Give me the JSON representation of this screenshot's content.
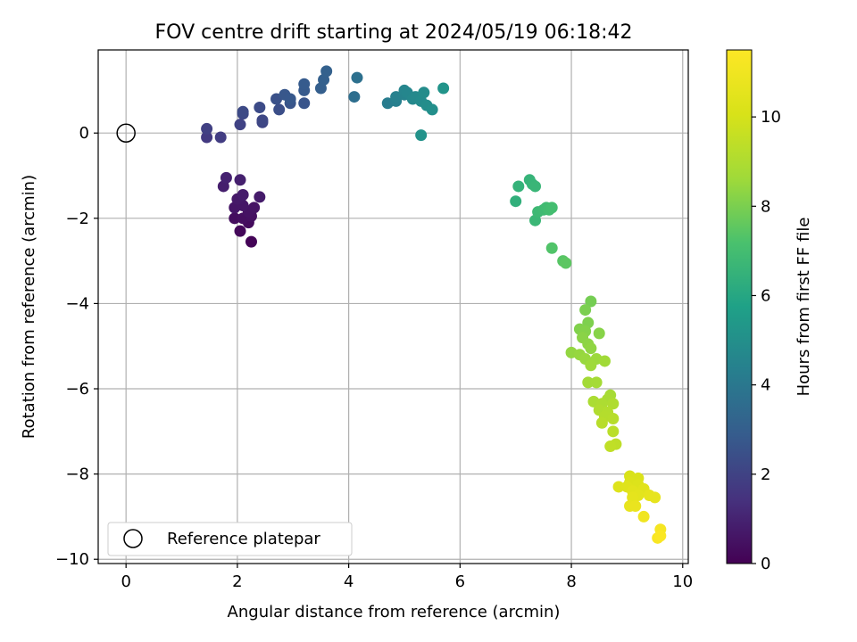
{
  "chart_data": {
    "type": "scatter",
    "title": "FOV centre drift starting at 2024/05/19 06:18:42",
    "xlabel": "Angular distance from reference (arcmin)",
    "ylabel": "Rotation from reference (arcmin)",
    "xlim": [
      -0.5,
      10.1
    ],
    "ylim": [
      -10.1,
      1.95
    ],
    "xticks": [
      "0",
      "2",
      "4",
      "6",
      "8",
      "10"
    ],
    "yticks": [
      "−10",
      "−8",
      "−6",
      "−4",
      "−2",
      "0"
    ],
    "grid": true,
    "legend": {
      "placement": "lower-left",
      "entries": [
        "Reference platepar"
      ]
    },
    "reference_point": {
      "x": 0,
      "y": 0
    },
    "colorbar": {
      "label": "Hours from first FF file",
      "colormap": "viridis",
      "range": [
        0,
        11.5
      ],
      "ticks": [
        "0",
        "2",
        "4",
        "6",
        "8",
        "10"
      ]
    },
    "points": [
      {
        "x": 2.25,
        "y": -2.55,
        "hours": 0.1
      },
      {
        "x": 2.05,
        "y": -2.3,
        "hours": 0.2
      },
      {
        "x": 2.2,
        "y": -2.1,
        "hours": 0.3
      },
      {
        "x": 1.95,
        "y": -2.0,
        "hours": 0.35
      },
      {
        "x": 2.1,
        "y": -2.0,
        "hours": 0.4
      },
      {
        "x": 2.25,
        "y": -1.95,
        "hours": 0.45
      },
      {
        "x": 2.2,
        "y": -1.85,
        "hours": 0.5
      },
      {
        "x": 2.3,
        "y": -1.75,
        "hours": 0.55
      },
      {
        "x": 1.95,
        "y": -1.75,
        "hours": 0.6
      },
      {
        "x": 2.1,
        "y": -1.7,
        "hours": 0.62
      },
      {
        "x": 2.05,
        "y": -1.55,
        "hours": 0.65
      },
      {
        "x": 2.0,
        "y": -1.55,
        "hours": 0.7
      },
      {
        "x": 2.4,
        "y": -1.5,
        "hours": 0.75
      },
      {
        "x": 2.1,
        "y": -1.45,
        "hours": 0.8
      },
      {
        "x": 1.75,
        "y": -1.25,
        "hours": 0.85
      },
      {
        "x": 2.05,
        "y": -1.1,
        "hours": 0.9
      },
      {
        "x": 1.8,
        "y": -1.05,
        "hours": 0.95
      },
      {
        "x": 1.45,
        "y": -0.1,
        "hours": 1.7
      },
      {
        "x": 1.7,
        "y": -0.1,
        "hours": 1.8
      },
      {
        "x": 1.45,
        "y": 0.1,
        "hours": 1.9
      },
      {
        "x": 2.05,
        "y": 0.2,
        "hours": 2.0
      },
      {
        "x": 2.45,
        "y": 0.25,
        "hours": 2.1
      },
      {
        "x": 2.45,
        "y": 0.3,
        "hours": 2.15
      },
      {
        "x": 2.1,
        "y": 0.45,
        "hours": 2.2
      },
      {
        "x": 2.1,
        "y": 0.5,
        "hours": 2.25
      },
      {
        "x": 2.4,
        "y": 0.6,
        "hours": 2.3
      },
      {
        "x": 2.75,
        "y": 0.55,
        "hours": 2.4
      },
      {
        "x": 2.7,
        "y": 0.8,
        "hours": 2.5
      },
      {
        "x": 2.95,
        "y": 0.7,
        "hours": 2.6
      },
      {
        "x": 3.2,
        "y": 0.7,
        "hours": 2.65
      },
      {
        "x": 2.85,
        "y": 0.9,
        "hours": 2.7
      },
      {
        "x": 2.95,
        "y": 0.8,
        "hours": 2.75
      },
      {
        "x": 3.2,
        "y": 1.0,
        "hours": 2.8
      },
      {
        "x": 3.2,
        "y": 1.15,
        "hours": 2.85
      },
      {
        "x": 3.5,
        "y": 1.05,
        "hours": 3.0
      },
      {
        "x": 3.55,
        "y": 1.25,
        "hours": 3.05
      },
      {
        "x": 3.6,
        "y": 1.45,
        "hours": 3.1
      },
      {
        "x": 4.1,
        "y": 0.85,
        "hours": 3.6
      },
      {
        "x": 4.15,
        "y": 1.3,
        "hours": 3.7
      },
      {
        "x": 4.7,
        "y": 0.7,
        "hours": 4.2
      },
      {
        "x": 4.85,
        "y": 0.75,
        "hours": 4.3
      },
      {
        "x": 4.85,
        "y": 0.85,
        "hours": 4.4
      },
      {
        "x": 5.0,
        "y": 0.9,
        "hours": 4.5
      },
      {
        "x": 5.0,
        "y": 1.0,
        "hours": 4.55
      },
      {
        "x": 5.05,
        "y": 0.95,
        "hours": 4.6
      },
      {
        "x": 5.15,
        "y": 0.8,
        "hours": 4.7
      },
      {
        "x": 5.2,
        "y": 0.85,
        "hours": 4.75
      },
      {
        "x": 5.3,
        "y": 0.75,
        "hours": 4.8
      },
      {
        "x": 5.35,
        "y": 0.95,
        "hours": 4.85
      },
      {
        "x": 5.4,
        "y": 0.65,
        "hours": 4.9
      },
      {
        "x": 5.5,
        "y": 0.55,
        "hours": 5.0
      },
      {
        "x": 5.3,
        "y": -0.05,
        "hours": 5.1
      },
      {
        "x": 5.7,
        "y": 1.05,
        "hours": 5.2
      },
      {
        "x": 7.0,
        "y": -1.6,
        "hours": 6.4
      },
      {
        "x": 7.05,
        "y": -1.25,
        "hours": 6.5
      },
      {
        "x": 7.25,
        "y": -1.1,
        "hours": 6.55
      },
      {
        "x": 7.3,
        "y": -1.2,
        "hours": 6.6
      },
      {
        "x": 7.35,
        "y": -1.25,
        "hours": 6.65
      },
      {
        "x": 7.35,
        "y": -2.05,
        "hours": 6.7
      },
      {
        "x": 7.4,
        "y": -1.85,
        "hours": 6.8
      },
      {
        "x": 7.5,
        "y": -1.8,
        "hours": 6.85
      },
      {
        "x": 7.55,
        "y": -1.75,
        "hours": 6.9
      },
      {
        "x": 7.6,
        "y": -1.8,
        "hours": 6.95
      },
      {
        "x": 7.65,
        "y": -1.75,
        "hours": 7.0
      },
      {
        "x": 7.65,
        "y": -2.7,
        "hours": 7.3
      },
      {
        "x": 7.85,
        "y": -3.0,
        "hours": 7.4
      },
      {
        "x": 7.9,
        "y": -3.05,
        "hours": 7.5
      },
      {
        "x": 8.35,
        "y": -3.95,
        "hours": 7.9
      },
      {
        "x": 8.25,
        "y": -4.15,
        "hours": 8.0
      },
      {
        "x": 8.3,
        "y": -4.45,
        "hours": 8.05
      },
      {
        "x": 8.15,
        "y": -4.6,
        "hours": 8.1
      },
      {
        "x": 8.25,
        "y": -4.65,
        "hours": 8.15
      },
      {
        "x": 8.5,
        "y": -4.7,
        "hours": 8.2
      },
      {
        "x": 8.2,
        "y": -4.8,
        "hours": 8.25
      },
      {
        "x": 8.3,
        "y": -4.95,
        "hours": 8.3
      },
      {
        "x": 8.35,
        "y": -5.05,
        "hours": 8.35
      },
      {
        "x": 8.0,
        "y": -5.15,
        "hours": 8.4
      },
      {
        "x": 8.15,
        "y": -5.2,
        "hours": 8.45
      },
      {
        "x": 8.25,
        "y": -5.3,
        "hours": 8.5
      },
      {
        "x": 8.45,
        "y": -5.3,
        "hours": 8.55
      },
      {
        "x": 8.35,
        "y": -5.45,
        "hours": 8.6
      },
      {
        "x": 8.6,
        "y": -5.35,
        "hours": 8.65
      },
      {
        "x": 8.3,
        "y": -5.85,
        "hours": 8.7
      },
      {
        "x": 8.45,
        "y": -5.85,
        "hours": 8.75
      },
      {
        "x": 8.7,
        "y": -6.15,
        "hours": 8.8
      },
      {
        "x": 8.65,
        "y": -6.25,
        "hours": 8.85
      },
      {
        "x": 8.4,
        "y": -6.3,
        "hours": 8.9
      },
      {
        "x": 8.55,
        "y": -6.35,
        "hours": 8.95
      },
      {
        "x": 8.75,
        "y": -6.35,
        "hours": 9.0
      },
      {
        "x": 8.5,
        "y": -6.5,
        "hours": 9.05
      },
      {
        "x": 8.65,
        "y": -6.55,
        "hours": 9.1
      },
      {
        "x": 8.6,
        "y": -6.65,
        "hours": 9.15
      },
      {
        "x": 8.75,
        "y": -6.7,
        "hours": 9.2
      },
      {
        "x": 8.55,
        "y": -6.8,
        "hours": 9.25
      },
      {
        "x": 8.75,
        "y": -7.0,
        "hours": 9.3
      },
      {
        "x": 8.8,
        "y": -7.3,
        "hours": 9.4
      },
      {
        "x": 8.7,
        "y": -7.35,
        "hours": 9.45
      },
      {
        "x": 9.05,
        "y": -8.05,
        "hours": 10.1
      },
      {
        "x": 9.2,
        "y": -8.1,
        "hours": 10.15
      },
      {
        "x": 9.05,
        "y": -8.2,
        "hours": 10.2
      },
      {
        "x": 9.2,
        "y": -8.25,
        "hours": 10.25
      },
      {
        "x": 8.85,
        "y": -8.3,
        "hours": 10.3
      },
      {
        "x": 9.0,
        "y": -8.3,
        "hours": 10.35
      },
      {
        "x": 9.3,
        "y": -8.35,
        "hours": 10.4
      },
      {
        "x": 9.1,
        "y": -8.4,
        "hours": 10.45
      },
      {
        "x": 9.2,
        "y": -8.5,
        "hours": 10.5
      },
      {
        "x": 9.1,
        "y": -8.55,
        "hours": 10.55
      },
      {
        "x": 9.4,
        "y": -8.5,
        "hours": 10.6
      },
      {
        "x": 9.5,
        "y": -8.55,
        "hours": 10.65
      },
      {
        "x": 9.05,
        "y": -8.75,
        "hours": 10.7
      },
      {
        "x": 9.15,
        "y": -8.75,
        "hours": 10.75
      },
      {
        "x": 9.3,
        "y": -9.0,
        "hours": 11.0
      },
      {
        "x": 9.6,
        "y": -9.3,
        "hours": 11.2
      },
      {
        "x": 9.55,
        "y": -9.5,
        "hours": 11.3
      },
      {
        "x": 9.6,
        "y": -9.45,
        "hours": 11.4
      }
    ]
  }
}
